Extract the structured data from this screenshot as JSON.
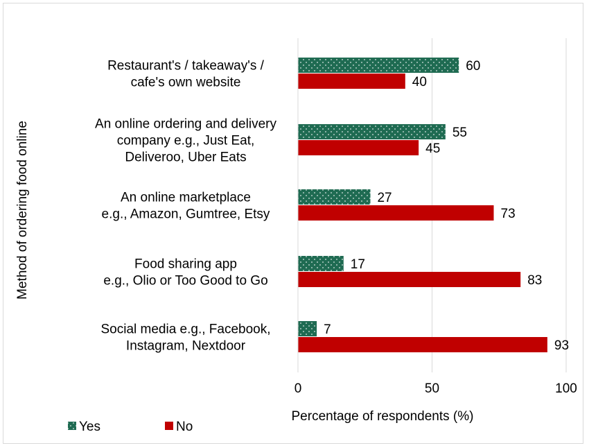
{
  "chart_data": {
    "type": "bar",
    "orientation": "horizontal",
    "categories": [
      [
        "Restaurant's / takeaway's /",
        "cafe's own website"
      ],
      [
        "An online ordering and delivery",
        "company e.g., Just Eat,",
        "Deliveroo, Uber  Eats"
      ],
      [
        "An online marketplace",
        "e.g., Amazon, Gumtree, Etsy"
      ],
      [
        "Food sharing app",
        "e.g., Olio or Too Good to Go"
      ],
      [
        "Social media e.g., Facebook,",
        "Instagram, Nextdoor"
      ]
    ],
    "series": [
      {
        "name": "Yes",
        "values": [
          60,
          55,
          27,
          17,
          7
        ],
        "color": "#1f6b52",
        "pattern": "dotted"
      },
      {
        "name": "No",
        "values": [
          40,
          45,
          73,
          83,
          93
        ],
        "color": "#c00000"
      }
    ],
    "xlabel": "Percentage of respondents (%)",
    "ylabel": "Method of ordering food online",
    "xlim": [
      0,
      100
    ],
    "xticks": [
      "0",
      "50",
      "100"
    ],
    "grid": "vertical",
    "legend": "bottom-left",
    "data_labels": true
  }
}
